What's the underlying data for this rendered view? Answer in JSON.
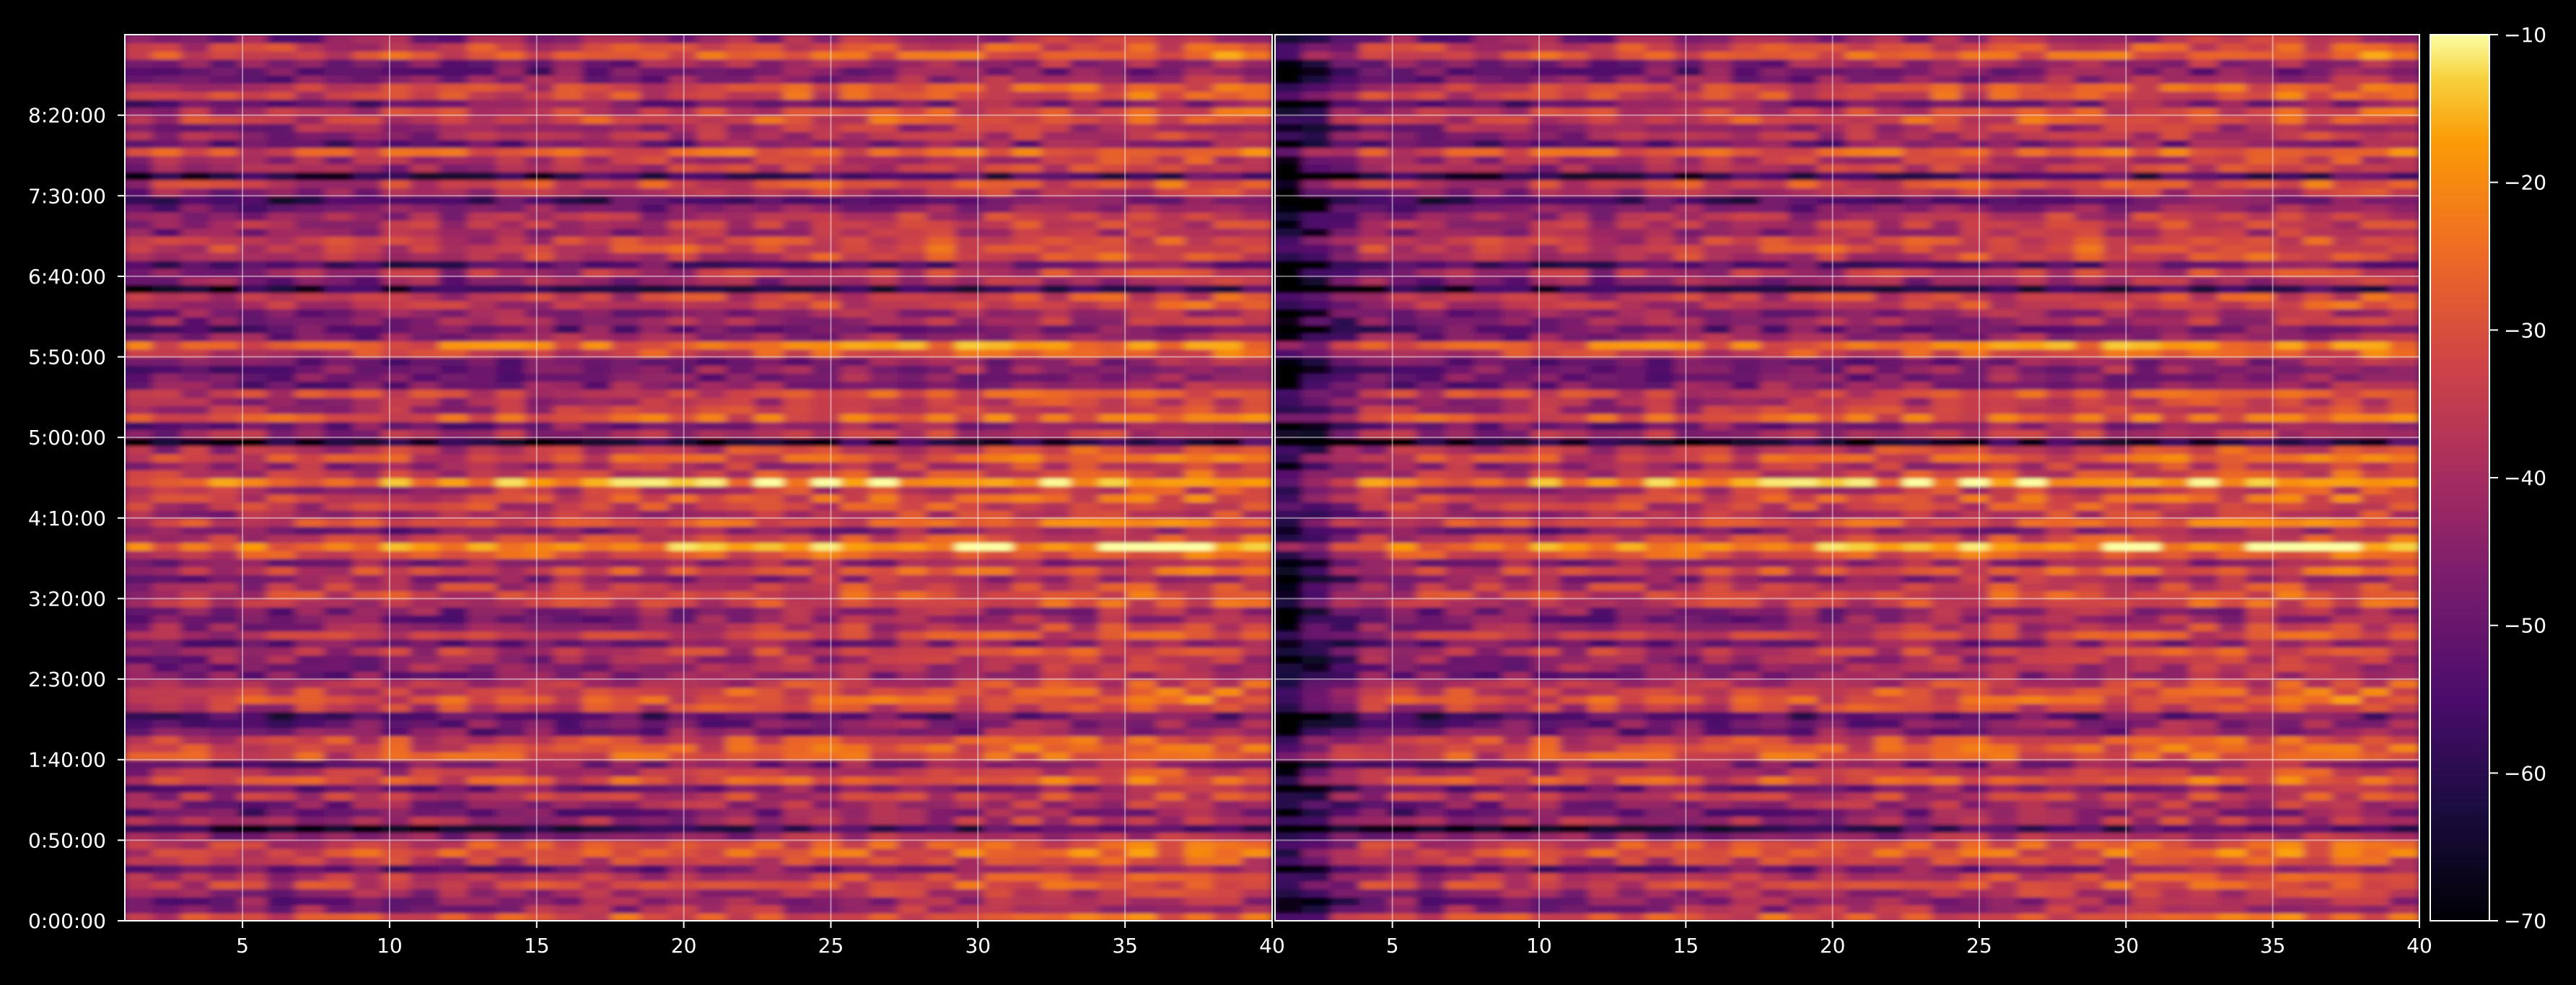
{
  "chart_data": {
    "type": "heatmap",
    "title": "",
    "colormap": "inferno",
    "background": "#000000",
    "grid": true,
    "panels": [
      {
        "name": "",
        "x_range": [
          1,
          40
        ],
        "x_ticks": [
          "5",
          "10",
          "15",
          "20",
          "25",
          "30",
          "35",
          "40"
        ]
      },
      {
        "name": "",
        "x_range": [
          1,
          40
        ],
        "x_ticks": [
          "5",
          "10",
          "15",
          "20",
          "25",
          "30",
          "35",
          "40"
        ]
      }
    ],
    "y_range_seconds": [
      0,
      33000
    ],
    "y_ticks": [
      "0:00:00",
      "0:50:00",
      "1:40:00",
      "2:30:00",
      "3:20:00",
      "4:10:00",
      "5:00:00",
      "5:50:00",
      "6:40:00",
      "7:30:00",
      "8:20:00"
    ],
    "colorbar": {
      "range": [
        -70,
        -10
      ],
      "ticks": [
        "−70",
        "−60",
        "−50",
        "−40",
        "−30",
        "−20",
        "−10"
      ],
      "position": "right"
    }
  }
}
